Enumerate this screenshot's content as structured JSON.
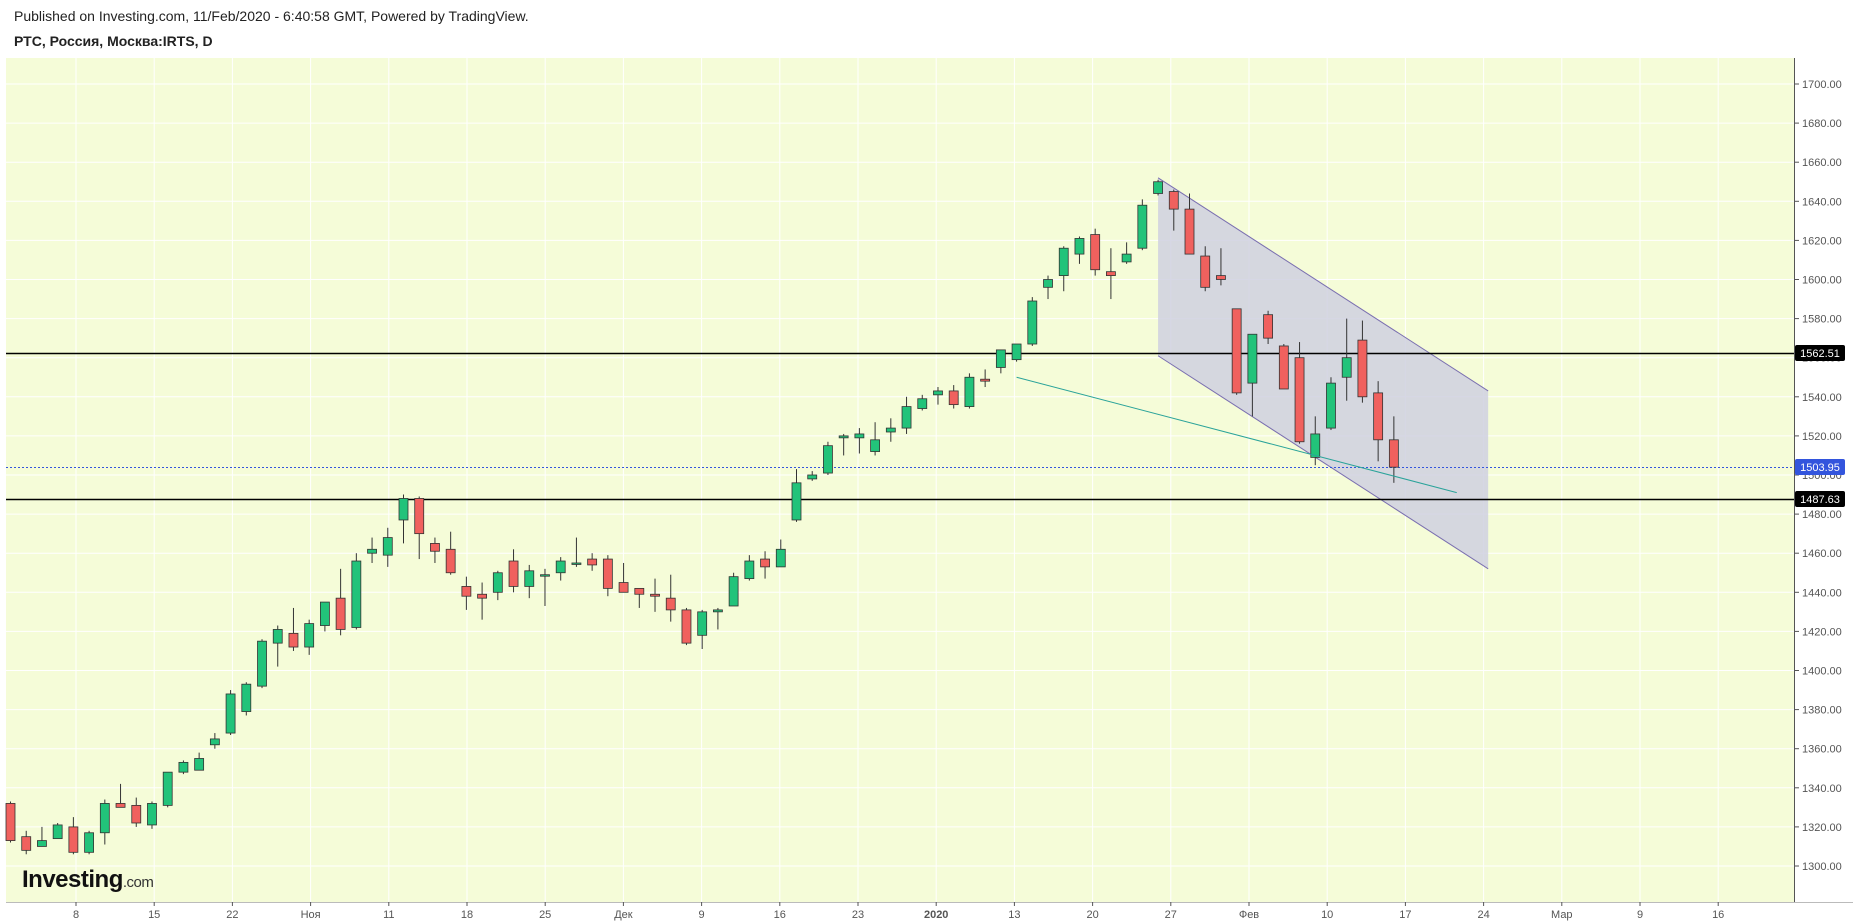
{
  "header": {
    "published": "Published on Investing.com, 11/Feb/2020 - 6:40:58 GMT, Powered by TradingView.",
    "symbol": "РТС, Россия, Москва:IRTS, D"
  },
  "logo": {
    "main": "Investing",
    "suffix": ".com"
  },
  "colors": {
    "background": "#f5fcd8",
    "up": "#22c37a",
    "down": "#f0615e",
    "wick": "#333333",
    "channel_fill": "#cfd0e0",
    "channel_line": "#7a6fb0",
    "trend_line": "#2aa39a",
    "current_price_line": "#3355dd",
    "level_line": "#000000"
  },
  "chart_data": {
    "type": "candlestick",
    "y_axis": {
      "min": 1288,
      "max": 1710,
      "ticks": [
        "1300.00",
        "1320.00",
        "1340.00",
        "1360.00",
        "1380.00",
        "1400.00",
        "1420.00",
        "1440.00",
        "1460.00",
        "1480.00",
        "1500.00",
        "1520.00",
        "1540.00",
        "1560.00",
        "1580.00",
        "1600.00",
        "1620.00",
        "1640.00",
        "1660.00",
        "1680.00",
        "1700.00"
      ]
    },
    "x_axis": {
      "labels": [
        "8",
        "15",
        "22",
        "Ноя",
        "11",
        "18",
        "25",
        "Дек",
        "9",
        "16",
        "23",
        "2020",
        "13",
        "20",
        "27",
        "Фев",
        "10",
        "17",
        "24",
        "Мар",
        "9",
        "16"
      ],
      "bold_labels": [
        "2020"
      ]
    },
    "candles": [
      {
        "o": 1332,
        "h": 1333,
        "l": 1312,
        "c": 1313
      },
      {
        "o": 1315,
        "h": 1318,
        "l": 1306,
        "c": 1308
      },
      {
        "o": 1310,
        "h": 1320,
        "l": 1310,
        "c": 1313
      },
      {
        "o": 1314,
        "h": 1322,
        "l": 1314,
        "c": 1321
      },
      {
        "o": 1320,
        "h": 1325,
        "l": 1306,
        "c": 1307
      },
      {
        "o": 1307,
        "h": 1318,
        "l": 1306,
        "c": 1317
      },
      {
        "o": 1317,
        "h": 1334,
        "l": 1311,
        "c": 1332
      },
      {
        "o": 1332,
        "h": 1342,
        "l": 1330,
        "c": 1330
      },
      {
        "o": 1331,
        "h": 1335,
        "l": 1320,
        "c": 1322
      },
      {
        "o": 1321,
        "h": 1333,
        "l": 1319,
        "c": 1332
      },
      {
        "o": 1331,
        "h": 1348,
        "l": 1330,
        "c": 1348
      },
      {
        "o": 1348,
        "h": 1354,
        "l": 1347,
        "c": 1353
      },
      {
        "o": 1349,
        "h": 1358,
        "l": 1349,
        "c": 1355
      },
      {
        "o": 1362,
        "h": 1368,
        "l": 1360,
        "c": 1365
      },
      {
        "o": 1368,
        "h": 1390,
        "l": 1367,
        "c": 1388
      },
      {
        "o": 1379,
        "h": 1394,
        "l": 1377,
        "c": 1393
      },
      {
        "o": 1392,
        "h": 1416,
        "l": 1391,
        "c": 1415
      },
      {
        "o": 1414,
        "h": 1423,
        "l": 1402,
        "c": 1421
      },
      {
        "o": 1419,
        "h": 1432,
        "l": 1410,
        "c": 1412
      },
      {
        "o": 1412,
        "h": 1426,
        "l": 1408,
        "c": 1424
      },
      {
        "o": 1423,
        "h": 1435,
        "l": 1420,
        "c": 1435
      },
      {
        "o": 1437,
        "h": 1452,
        "l": 1418,
        "c": 1421
      },
      {
        "o": 1422,
        "h": 1460,
        "l": 1421,
        "c": 1456
      },
      {
        "o": 1460,
        "h": 1468,
        "l": 1455,
        "c": 1462
      },
      {
        "o": 1459,
        "h": 1473,
        "l": 1453,
        "c": 1468
      },
      {
        "o": 1477,
        "h": 1490,
        "l": 1465,
        "c": 1488
      },
      {
        "o": 1488,
        "h": 1489,
        "l": 1457,
        "c": 1470
      },
      {
        "o": 1465,
        "h": 1468,
        "l": 1455,
        "c": 1461
      },
      {
        "o": 1462,
        "h": 1471,
        "l": 1449,
        "c": 1450
      },
      {
        "o": 1443,
        "h": 1448,
        "l": 1431,
        "c": 1438
      },
      {
        "o": 1439,
        "h": 1445,
        "l": 1426,
        "c": 1437
      },
      {
        "o": 1440,
        "h": 1451,
        "l": 1436,
        "c": 1450
      },
      {
        "o": 1456,
        "h": 1462,
        "l": 1440,
        "c": 1443
      },
      {
        "o": 1443,
        "h": 1454,
        "l": 1437,
        "c": 1451
      },
      {
        "o": 1449,
        "h": 1452,
        "l": 1433,
        "c": 1449
      },
      {
        "o": 1450,
        "h": 1458,
        "l": 1446,
        "c": 1456
      },
      {
        "o": 1455,
        "h": 1468,
        "l": 1453,
        "c": 1455
      },
      {
        "o": 1457,
        "h": 1460,
        "l": 1451,
        "c": 1454
      },
      {
        "o": 1457,
        "h": 1459,
        "l": 1438,
        "c": 1442
      },
      {
        "o": 1445,
        "h": 1455,
        "l": 1440,
        "c": 1440
      },
      {
        "o": 1442,
        "h": 1442,
        "l": 1432,
        "c": 1439
      },
      {
        "o": 1439,
        "h": 1447,
        "l": 1430,
        "c": 1438
      },
      {
        "o": 1437,
        "h": 1449,
        "l": 1425,
        "c": 1431
      },
      {
        "o": 1431,
        "h": 1432,
        "l": 1413,
        "c": 1414
      },
      {
        "o": 1418,
        "h": 1431,
        "l": 1411,
        "c": 1430
      },
      {
        "o": 1430,
        "h": 1432,
        "l": 1421,
        "c": 1431
      },
      {
        "o": 1433,
        "h": 1450,
        "l": 1433,
        "c": 1448
      },
      {
        "o": 1447,
        "h": 1459,
        "l": 1446,
        "c": 1456
      },
      {
        "o": 1457,
        "h": 1461,
        "l": 1447,
        "c": 1453
      },
      {
        "o": 1453,
        "h": 1467,
        "l": 1453,
        "c": 1462
      },
      {
        "o": 1477,
        "h": 1503,
        "l": 1476,
        "c": 1496
      },
      {
        "o": 1498,
        "h": 1502,
        "l": 1497,
        "c": 1500
      },
      {
        "o": 1501,
        "h": 1517,
        "l": 1500,
        "c": 1515
      },
      {
        "o": 1519,
        "h": 1521,
        "l": 1510,
        "c": 1520
      },
      {
        "o": 1519,
        "h": 1524,
        "l": 1511,
        "c": 1521
      },
      {
        "o": 1512,
        "h": 1527,
        "l": 1510,
        "c": 1518
      },
      {
        "o": 1522,
        "h": 1529,
        "l": 1517,
        "c": 1524
      },
      {
        "o": 1524,
        "h": 1540,
        "l": 1521,
        "c": 1535
      },
      {
        "o": 1534,
        "h": 1541,
        "l": 1533,
        "c": 1539
      },
      {
        "o": 1541,
        "h": 1545,
        "l": 1536,
        "c": 1543
      },
      {
        "o": 1543,
        "h": 1546,
        "l": 1534,
        "c": 1536
      },
      {
        "o": 1535,
        "h": 1552,
        "l": 1534,
        "c": 1550
      },
      {
        "o": 1549,
        "h": 1554,
        "l": 1545,
        "c": 1548
      },
      {
        "o": 1555,
        "h": 1563,
        "l": 1552,
        "c": 1564
      },
      {
        "o": 1559,
        "h": 1567,
        "l": 1558,
        "c": 1567
      },
      {
        "o": 1567,
        "h": 1591,
        "l": 1566,
        "c": 1589
      },
      {
        "o": 1596,
        "h": 1602,
        "l": 1590,
        "c": 1600
      },
      {
        "o": 1602,
        "h": 1617,
        "l": 1594,
        "c": 1616
      },
      {
        "o": 1613,
        "h": 1622,
        "l": 1608,
        "c": 1621
      },
      {
        "o": 1623,
        "h": 1626,
        "l": 1602,
        "c": 1605
      },
      {
        "o": 1604,
        "h": 1616,
        "l": 1590,
        "c": 1602
      },
      {
        "o": 1609,
        "h": 1619,
        "l": 1608,
        "c": 1613
      },
      {
        "o": 1616,
        "h": 1641,
        "l": 1615,
        "c": 1638
      },
      {
        "o": 1644,
        "h": 1651,
        "l": 1643,
        "c": 1650
      },
      {
        "o": 1645,
        "h": 1646,
        "l": 1625,
        "c": 1636
      },
      {
        "o": 1636,
        "h": 1644,
        "l": 1613,
        "c": 1613
      },
      {
        "o": 1612,
        "h": 1617,
        "l": 1594,
        "c": 1596
      },
      {
        "o": 1602,
        "h": 1616,
        "l": 1597,
        "c": 1600
      },
      {
        "o": 1585,
        "h": 1585,
        "l": 1541,
        "c": 1542
      },
      {
        "o": 1547,
        "h": 1570,
        "l": 1530,
        "c": 1572
      },
      {
        "o": 1582,
        "h": 1584,
        "l": 1567,
        "c": 1570
      },
      {
        "o": 1566,
        "h": 1567,
        "l": 1544,
        "c": 1544
      },
      {
        "o": 1560,
        "h": 1568,
        "l": 1516,
        "c": 1517
      },
      {
        "o": 1509,
        "h": 1530,
        "l": 1505,
        "c": 1521
      },
      {
        "o": 1524,
        "h": 1550,
        "l": 1523,
        "c": 1547
      },
      {
        "o": 1550,
        "h": 1580,
        "l": 1538,
        "c": 1560
      },
      {
        "o": 1569,
        "h": 1579,
        "l": 1537,
        "c": 1540
      },
      {
        "o": 1542,
        "h": 1548,
        "l": 1507,
        "c": 1518
      },
      {
        "o": 1518,
        "h": 1530,
        "l": 1496,
        "c": 1504
      }
    ],
    "levels": [
      {
        "price": 1562.51,
        "label": "1562.51",
        "style": "solid"
      },
      {
        "price": 1503.95,
        "label": "1503.95",
        "style": "dotted"
      },
      {
        "price": 1487.63,
        "label": "1487.63",
        "style": "solid"
      }
    ],
    "channel": {
      "upper": {
        "x1": 73,
        "y1": 1652,
        "x2": 94,
        "y2": 1543
      },
      "lower": {
        "x1": 73,
        "y1": 1561,
        "x2": 94,
        "y2": 1452
      }
    },
    "trend_line": {
      "x1": 64,
      "y1": 1550,
      "x2": 92,
      "y2": 1491
    }
  }
}
